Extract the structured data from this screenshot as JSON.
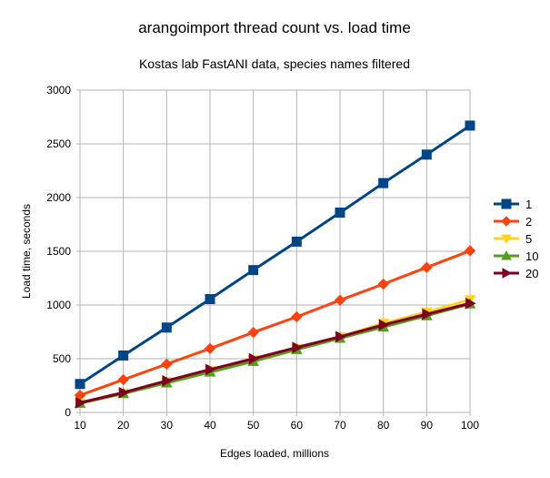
{
  "chart_data": {
    "type": "line",
    "title": "arangoimport thread count vs. load time",
    "subtitle": "Kostas lab FastANI data, species names filtered",
    "xlabel": "Edges loaded, millions",
    "ylabel": "Load time, seconds",
    "x": [
      10,
      20,
      30,
      40,
      50,
      60,
      70,
      80,
      90,
      100
    ],
    "xlim": [
      10,
      100
    ],
    "ylim": [
      0,
      3000
    ],
    "yticks": [
      0,
      500,
      1000,
      1500,
      2000,
      2500,
      3000
    ],
    "grid": true,
    "legend_position": "right",
    "series": [
      {
        "name": "1",
        "color": "#004586",
        "marker": "square",
        "values": [
          265,
          530,
          790,
          1055,
          1325,
          1590,
          1860,
          2135,
          2400,
          2670
        ]
      },
      {
        "name": "2",
        "color": "#ff420e",
        "marker": "diamond",
        "values": [
          160,
          305,
          450,
          595,
          745,
          890,
          1045,
          1195,
          1350,
          1505
        ]
      },
      {
        "name": "5",
        "color": "#ffd320",
        "marker": "triangle-down",
        "values": [
          85,
          180,
          285,
          390,
          490,
          595,
          705,
          830,
          935,
          1050
        ]
      },
      {
        "name": "10",
        "color": "#579d1c",
        "marker": "triangle-up",
        "values": [
          85,
          175,
          275,
          375,
          475,
          585,
          690,
          795,
          900,
          1010
        ]
      },
      {
        "name": "20",
        "color": "#7e0021",
        "marker": "triangle-right",
        "values": [
          90,
          185,
          295,
          400,
          500,
          605,
          705,
          815,
          915,
          1015
        ]
      }
    ]
  }
}
